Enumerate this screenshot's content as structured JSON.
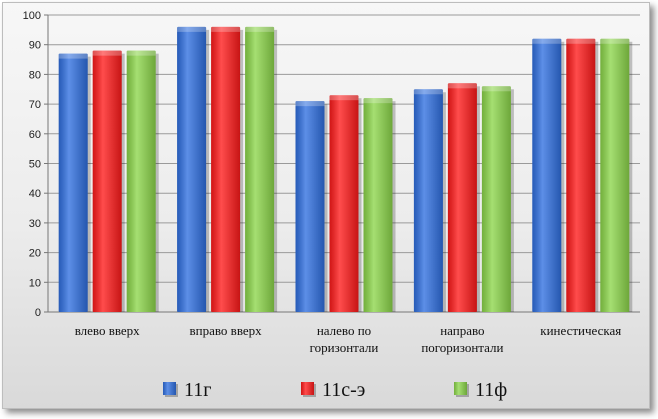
{
  "chart_data": {
    "type": "bar",
    "categories": [
      [
        "влево вверх"
      ],
      [
        "вправо вверх"
      ],
      [
        "налево по",
        "горизонтали"
      ],
      [
        "направо",
        "погоризонтали"
      ],
      [
        "кинестическая"
      ]
    ],
    "series": [
      {
        "name": "11г",
        "color": "#2f6fe0",
        "values": [
          87,
          96,
          71,
          75,
          92
        ]
      },
      {
        "name": "11с-э",
        "color": "#ff1a1a",
        "values": [
          88,
          96,
          73,
          77,
          92
        ]
      },
      {
        "name": "11ф",
        "color": "#8cd64a",
        "values": [
          88,
          96,
          72,
          76,
          92
        ]
      }
    ],
    "ylim": [
      0,
      100
    ],
    "yticks": [
      0,
      10,
      20,
      30,
      40,
      50,
      60,
      70,
      80,
      90,
      100
    ],
    "grid": true,
    "legend_position": "bottom"
  }
}
